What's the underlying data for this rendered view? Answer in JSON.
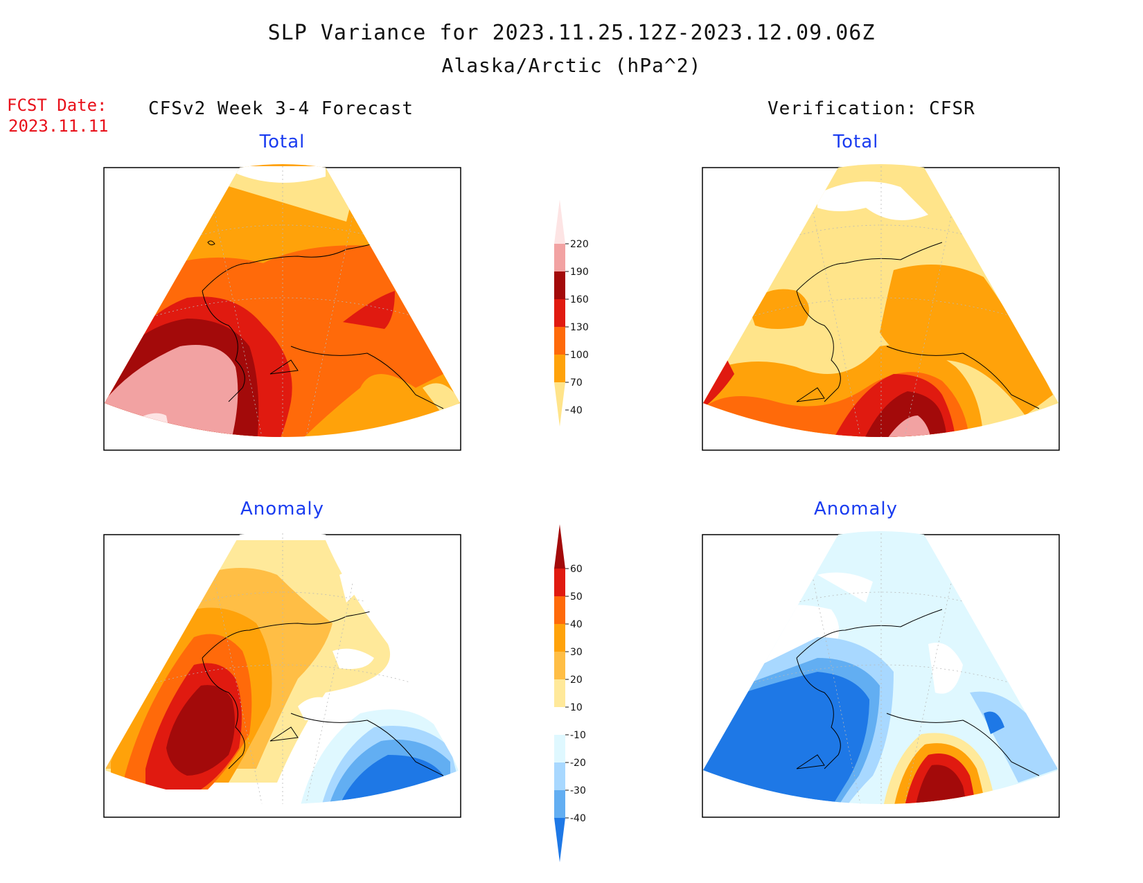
{
  "header": {
    "title": "SLP Variance for 2023.11.25.12Z-2023.12.09.06Z",
    "subtitle": "Alaska/Arctic (hPa^2)",
    "fcst_label": "FCST Date:",
    "fcst_date": "2023.11.11",
    "left_column": "CFSv2 Week 3-4 Forecast",
    "right_column": "Verification: CFSR"
  },
  "panels": {
    "forecast_total_title": "Total",
    "verification_total_title": "Total",
    "forecast_anomaly_title": "Anomaly",
    "verification_anomaly_title": "Anomaly"
  },
  "colorbars": {
    "total": {
      "labels": [
        "220",
        "190",
        "160",
        "130",
        "100",
        "70",
        "40"
      ],
      "colors": [
        "#fde4e4",
        "#f2a2a2",
        "#a30a0a",
        "#e01a10",
        "#ff6a0a",
        "#ffa20a",
        "#ffe48a"
      ]
    },
    "anomaly": {
      "labels": [
        "60",
        "50",
        "40",
        "30",
        "20",
        "10",
        "-10",
        "-20",
        "-30",
        "-40"
      ],
      "colors": [
        "#a30a0a",
        "#e01a10",
        "#ff6a0a",
        "#ffa20a",
        "#ffbe45",
        "#ffe99a",
        "#ffffff",
        "#dff8ff",
        "#a8d8ff",
        "#62aef2",
        "#1e78e6"
      ]
    }
  },
  "colors": {
    "title_red": "#e8101a",
    "panel_title_blue": "#1a3cf0"
  }
}
